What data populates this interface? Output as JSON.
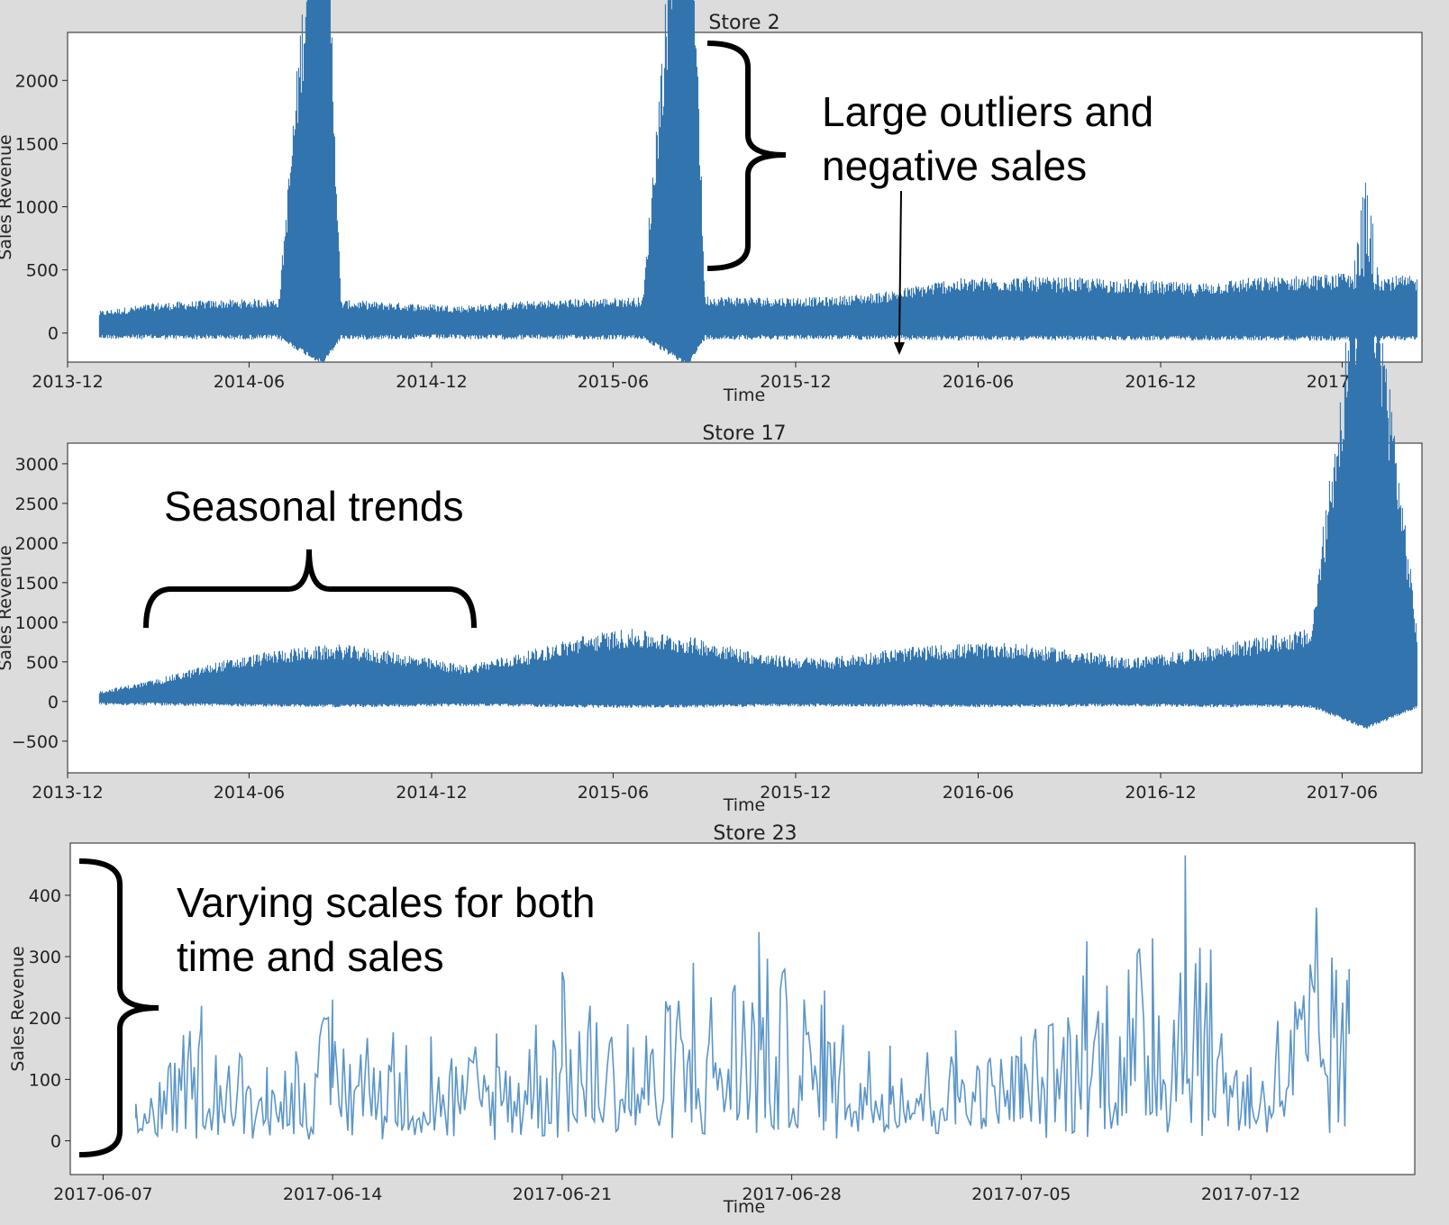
{
  "chart_data": [
    {
      "type": "line",
      "title": "Store 2",
      "xlabel": "Time",
      "ylabel": "Sales Revenue",
      "x_axis": "date",
      "x_range": [
        "2013-12-01",
        "2017-08-20"
      ],
      "ylim": [
        -230,
        2380
      ],
      "x_ticks": [
        "2013-12",
        "2014-06",
        "2014-12",
        "2015-06",
        "2015-12",
        "2016-06",
        "2016-12",
        "2017-06"
      ],
      "y_ticks": [
        0,
        500,
        1000,
        1500,
        2000
      ],
      "color": "#3274ae",
      "series": [
        {
          "x": [
            "2014-01-02",
            "2014-03-01",
            "2014-05-01",
            "2014-07-01",
            "2014-08-14",
            "2014-09-01",
            "2014-11-01",
            "2015-01-01",
            "2015-03-01",
            "2015-05-01",
            "2015-07-01",
            "2015-08-15",
            "2015-09-01",
            "2015-11-01",
            "2016-01-01",
            "2016-03-01",
            "2016-05-01",
            "2016-07-01",
            "2016-09-01",
            "2016-11-01",
            "2017-01-01",
            "2017-03-01",
            "2017-05-01",
            "2017-06-01",
            "2017-08-15"
          ],
          "y": [
            80,
            110,
            120,
            125,
            2160,
            120,
            110,
            100,
            115,
            125,
            130,
            2280,
            135,
            130,
            130,
            150,
            195,
            205,
            200,
            195,
            180,
            200,
            210,
            215,
            205
          ]
        }
      ],
      "annotation": {
        "lines": [
          "Large outliers and",
          "negative sales"
        ]
      }
    },
    {
      "type": "line",
      "title": "Store 17",
      "xlabel": "Time",
      "ylabel": "Sales Revenue",
      "x_axis": "date",
      "x_range": [
        "2013-12-01",
        "2017-08-20"
      ],
      "ylim": [
        -900,
        3260
      ],
      "x_ticks": [
        "2013-12",
        "2014-06",
        "2014-12",
        "2015-06",
        "2015-12",
        "2016-06",
        "2016-12",
        "2017-06"
      ],
      "y_ticks": [
        -500,
        0,
        500,
        1000,
        1500,
        2000,
        2500,
        3000
      ],
      "color": "#3274ae",
      "series": [
        {
          "x": [
            "2014-01-02",
            "2014-03-01",
            "2014-05-01",
            "2014-07-01",
            "2014-09-01",
            "2014-11-01",
            "2015-01-01",
            "2015-03-01",
            "2015-05-01",
            "2015-06-15",
            "2015-09-01",
            "2015-11-01",
            "2016-01-01",
            "2016-03-01",
            "2016-05-01",
            "2016-07-01",
            "2016-09-01",
            "2016-11-01",
            "2017-01-01",
            "2017-03-01",
            "2017-05-01",
            "2017-06-25",
            "2017-08-15"
          ],
          "y": [
            60,
            130,
            230,
            300,
            330,
            280,
            210,
            280,
            380,
            420,
            360,
            270,
            250,
            300,
            330,
            340,
            300,
            250,
            300,
            360,
            420,
            3100,
            430
          ]
        }
      ],
      "annotation": {
        "lines": [
          "Seasonal trends"
        ]
      }
    },
    {
      "type": "line",
      "title": "Store 23",
      "xlabel": "Time",
      "ylabel": "Sales Revenue",
      "x_axis": "date",
      "x_range": [
        "2017-06-06",
        "2017-07-17"
      ],
      "ylim": [
        -55,
        485
      ],
      "x_ticks": [
        "2017-06-07",
        "2017-06-14",
        "2017-06-21",
        "2017-06-28",
        "2017-07-05",
        "2017-07-12"
      ],
      "y_ticks": [
        0,
        100,
        200,
        300,
        400
      ],
      "color": "#5b95c8",
      "series": [
        {
          "x": [
            "2017-06-08",
            "2017-06-10",
            "2017-06-12",
            "2017-06-14",
            "2017-06-17",
            "2017-06-19",
            "2017-06-21",
            "2017-06-23",
            "2017-06-25",
            "2017-06-27",
            "2017-06-29",
            "2017-07-01",
            "2017-07-03",
            "2017-07-05",
            "2017-07-07",
            "2017-07-09",
            "2017-07-10",
            "2017-07-12",
            "2017-07-14",
            "2017-07-15"
          ],
          "y": [
            60,
            220,
            120,
            230,
            170,
            175,
            275,
            190,
            290,
            340,
            245,
            155,
            180,
            170,
            325,
            330,
            465,
            120,
            380,
            280
          ]
        }
      ],
      "annotation": {
        "lines": [
          "Varying scales for both",
          "time and sales"
        ]
      }
    }
  ]
}
